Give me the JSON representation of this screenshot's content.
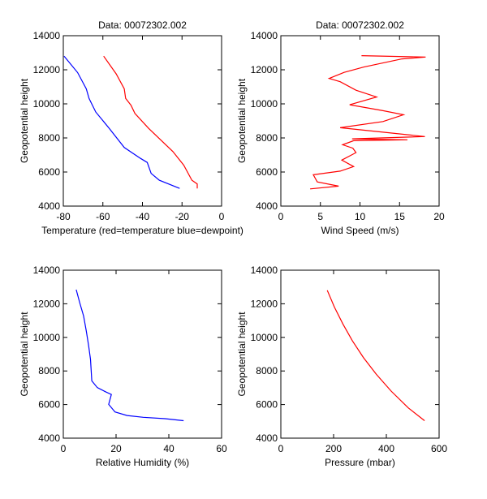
{
  "chart_data": [
    {
      "type": "line",
      "title": "Data: 00072302.002",
      "xlabel": "Temperature (red=temperature blue=dewpoint)",
      "ylabel": "Geopotential height",
      "xlim": [
        -80,
        0
      ],
      "ylim": [
        4000,
        14000
      ],
      "xticks": [
        -80,
        -60,
        -40,
        -20,
        0
      ],
      "yticks": [
        4000,
        6000,
        8000,
        10000,
        12000,
        14000
      ],
      "grid": false,
      "series": [
        {
          "color": "#ff0000",
          "points": [
            [
              -59.6,
              12800
            ],
            [
              -53.3,
              11760
            ],
            [
              -49.2,
              10880
            ],
            [
              -48.5,
              10320
            ],
            [
              -45.8,
              9920
            ],
            [
              -43.8,
              9440
            ],
            [
              -36.9,
              8560
            ],
            [
              -24.6,
              7200
            ],
            [
              -19.1,
              6400
            ],
            [
              -15,
              5520
            ],
            [
              -12.3,
              5300
            ],
            [
              -12.3,
              5040
            ]
          ]
        },
        {
          "color": "#0000ff",
          "points": [
            [
              -79.6,
              12800
            ],
            [
              -72.8,
              11840
            ],
            [
              -68.4,
              10880
            ],
            [
              -67,
              10320
            ],
            [
              -63.6,
              9520
            ],
            [
              -56.8,
              8560
            ],
            [
              -49.2,
              7440
            ],
            [
              -41,
              6800
            ],
            [
              -37.6,
              6560
            ],
            [
              -35.6,
              5920
            ],
            [
              -31.5,
              5520
            ],
            [
              -21.2,
              5040
            ]
          ]
        }
      ]
    },
    {
      "type": "line",
      "title": "Data: 00072302.002",
      "xlabel": "Wind Speed (m/s)",
      "ylabel": "Geopotential height",
      "xlim": [
        0,
        20
      ],
      "ylim": [
        4000,
        14000
      ],
      "xticks": [
        0,
        5,
        10,
        15,
        20
      ],
      "yticks": [
        4000,
        6000,
        8000,
        10000,
        12000,
        14000
      ],
      "grid": false,
      "series": [
        {
          "color": "#ff0000",
          "points": [
            [
              3.7,
              5010
            ],
            [
              7.3,
              5170
            ],
            [
              4.6,
              5420
            ],
            [
              4.1,
              5840
            ],
            [
              7.5,
              6050
            ],
            [
              9.2,
              6320
            ],
            [
              7.7,
              6700
            ],
            [
              9.5,
              7140
            ],
            [
              9.1,
              7400
            ],
            [
              7.8,
              7600
            ],
            [
              9.2,
              7840
            ],
            [
              16,
              7890
            ],
            [
              9,
              7950
            ],
            [
              18.2,
              8080
            ],
            [
              7.5,
              8600
            ],
            [
              12.9,
              8960
            ],
            [
              15.5,
              9360
            ],
            [
              12.9,
              9600
            ],
            [
              8.7,
              9950
            ],
            [
              12.1,
              10400
            ],
            [
              9.5,
              10800
            ],
            [
              7.5,
              11300
            ],
            [
              6.1,
              11490
            ],
            [
              8,
              11850
            ],
            [
              10.5,
              12160
            ],
            [
              15.3,
              12640
            ],
            [
              18.3,
              12750
            ],
            [
              10.2,
              12830
            ]
          ]
        }
      ]
    },
    {
      "type": "line",
      "title": "",
      "xlabel": "Relative Humidity (%)",
      "ylabel": "Geopotential height",
      "xlim": [
        0,
        60
      ],
      "ylim": [
        4000,
        14000
      ],
      "xticks": [
        0,
        20,
        40,
        60
      ],
      "yticks": [
        4000,
        6000,
        8000,
        10000,
        12000,
        14000
      ],
      "grid": false,
      "series": [
        {
          "color": "#0000ff",
          "points": [
            [
              4.9,
              12840
            ],
            [
              6.2,
              12070
            ],
            [
              7.7,
              11270
            ],
            [
              8.7,
              10380
            ],
            [
              9.6,
              9500
            ],
            [
              10.3,
              8690
            ],
            [
              10.8,
              7410
            ],
            [
              12.9,
              7010
            ],
            [
              15.9,
              6770
            ],
            [
              18.2,
              6600
            ],
            [
              17.2,
              6010
            ],
            [
              19.6,
              5560
            ],
            [
              24.2,
              5350
            ],
            [
              30.3,
              5240
            ],
            [
              38.6,
              5160
            ],
            [
              45.6,
              5040
            ]
          ]
        }
      ]
    },
    {
      "type": "line",
      "title": "",
      "xlabel": "Pressure (mbar)",
      "ylabel": "Geopotential height",
      "xlim": [
        0,
        600
      ],
      "ylim": [
        4000,
        14000
      ],
      "xticks": [
        0,
        200,
        400,
        600
      ],
      "yticks": [
        4000,
        6000,
        8000,
        10000,
        12000,
        14000
      ],
      "grid": false,
      "series": [
        {
          "color": "#ff0000",
          "points": [
            [
              176,
              12800
            ],
            [
              203,
              11800
            ],
            [
              235,
              10800
            ],
            [
              271,
              9800
            ],
            [
              313,
              8800
            ],
            [
              362,
              7800
            ],
            [
              418,
              6800
            ],
            [
              483,
              5800
            ],
            [
              545,
              5040
            ]
          ]
        }
      ]
    }
  ]
}
